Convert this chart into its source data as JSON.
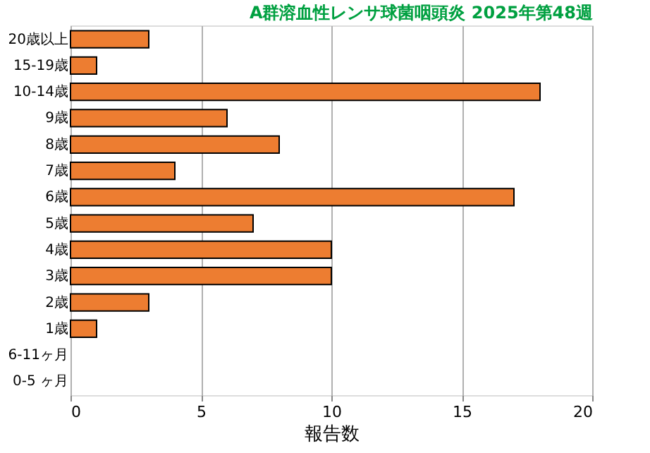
{
  "chart_data": {
    "type": "bar",
    "orientation": "horizontal",
    "title": "A群溶血性レンサ球菌咽頭炎 2025年第48週",
    "xlabel": "報告数",
    "categories": [
      "20歳以上",
      "15-19歳",
      "10-14歳",
      "9歳",
      "8歳",
      "7歳",
      "6歳",
      "5歳",
      "4歳",
      "3歳",
      "2歳",
      "1歳",
      "6-11ヶ月",
      "0-5 ヶ月"
    ],
    "values": [
      3,
      1,
      18,
      6,
      8,
      4,
      17,
      7,
      10,
      10,
      3,
      1,
      0,
      0
    ],
    "color": "#ed7d31",
    "xlim": [
      0,
      20
    ],
    "xticks": [
      0,
      5,
      10,
      15,
      20
    ],
    "grid": "x"
  }
}
